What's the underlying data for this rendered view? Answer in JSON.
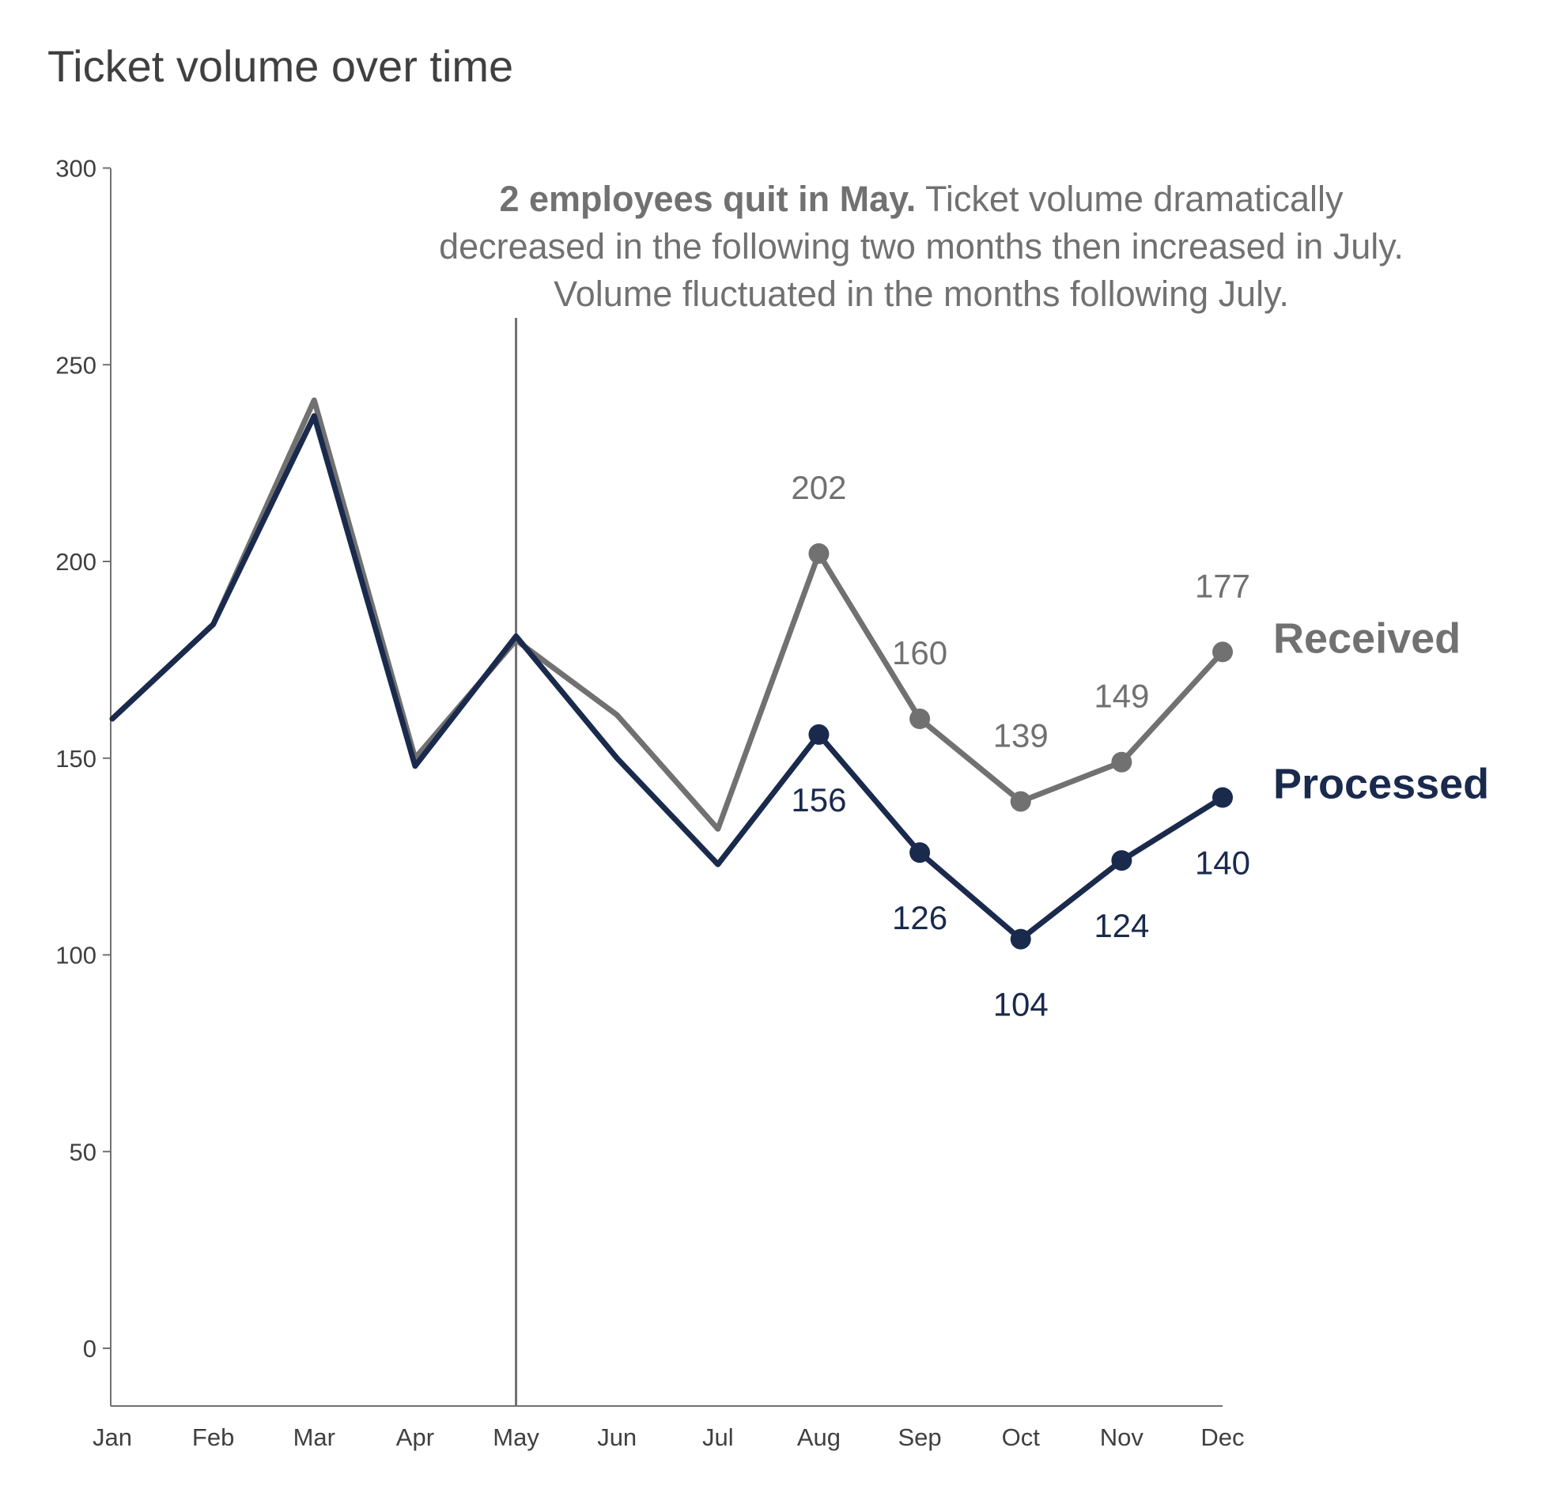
{
  "chart_data": {
    "type": "line",
    "title": "Ticket volume over time",
    "xlabel": "",
    "ylabel": "",
    "categories": [
      "Jan",
      "Feb",
      "Mar",
      "Apr",
      "May",
      "Jun",
      "Jul",
      "Aug",
      "Sep",
      "Oct",
      "Nov",
      "Dec"
    ],
    "yticks": [
      0,
      50,
      100,
      150,
      200,
      250,
      300
    ],
    "ylim": [
      -15,
      300
    ],
    "grid": false,
    "legend": "direct labels at right end of lines",
    "series": [
      {
        "name": "Received",
        "color": "#717171",
        "values": [
          160,
          184,
          241,
          150,
          180,
          161,
          132,
          202,
          160,
          139,
          149,
          177
        ],
        "labeled_points": [
          "Aug",
          "Sep",
          "Oct",
          "Nov",
          "Dec"
        ],
        "label_position": "above"
      },
      {
        "name": "Processed",
        "color": "#1a2a4d",
        "values": [
          160,
          184,
          237,
          148,
          181,
          150,
          123,
          156,
          126,
          104,
          124,
          140
        ],
        "labeled_points": [
          "Aug",
          "Sep",
          "Oct",
          "Nov",
          "Dec"
        ],
        "label_position": "below"
      }
    ],
    "reference_line": {
      "x": "May",
      "color": "#717171"
    },
    "annotation": {
      "bold": "2 employees quit in May.",
      "line1_rest": " Ticket volume dramatically",
      "line2": "decreased in the following two months then increased in July.",
      "line3": "Volume fluctuated in the months following July."
    }
  }
}
